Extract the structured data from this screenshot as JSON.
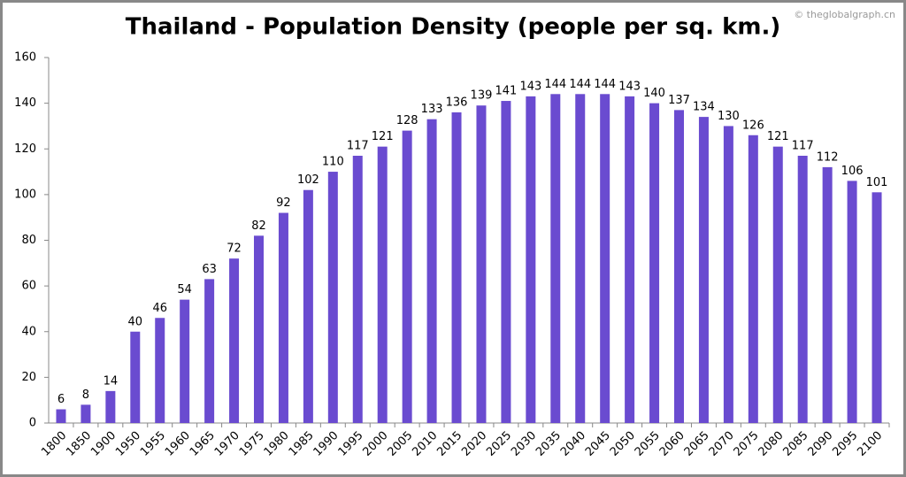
{
  "chart_data": {
    "type": "bar",
    "title": "Thailand - Population Density (people per sq. km.)",
    "watermark": "© theglobalgraph.cn",
    "categories": [
      "1800",
      "1850",
      "1900",
      "1950",
      "1955",
      "1960",
      "1965",
      "1970",
      "1975",
      "1980",
      "1985",
      "1990",
      "1995",
      "2000",
      "2005",
      "2010",
      "2015",
      "2020",
      "2025",
      "2030",
      "2035",
      "2040",
      "2045",
      "2050",
      "2055",
      "2060",
      "2065",
      "2070",
      "2075",
      "2080",
      "2085",
      "2090",
      "2095",
      "2100"
    ],
    "values": [
      6,
      8,
      14,
      40,
      46,
      54,
      63,
      72,
      82,
      92,
      102,
      110,
      117,
      121,
      128,
      133,
      136,
      139,
      141,
      143,
      144,
      144,
      144,
      143,
      140,
      137,
      134,
      130,
      126,
      121,
      117,
      112,
      106,
      101
    ],
    "color": "#6a4bd0",
    "ylim": [
      0,
      160
    ],
    "yticks": [
      0,
      20,
      40,
      60,
      80,
      100,
      120,
      140,
      160
    ],
    "grid": false
  }
}
